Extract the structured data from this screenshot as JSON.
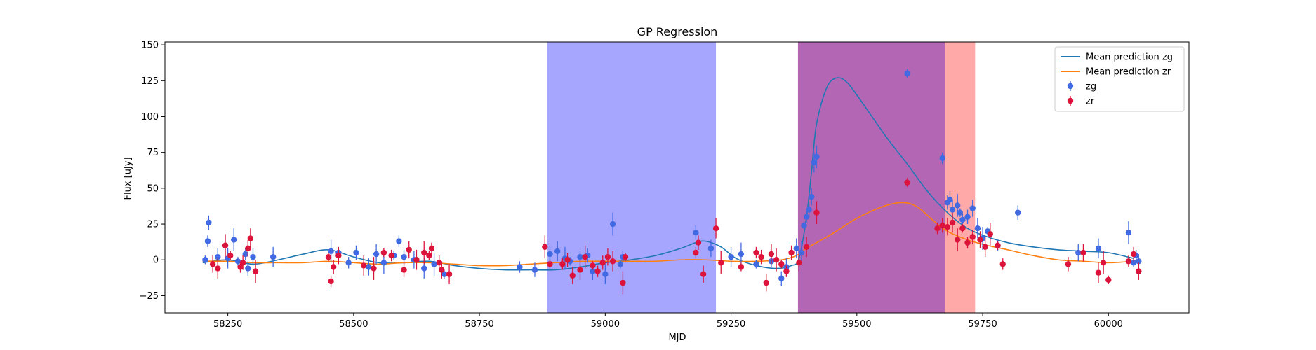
{
  "chart_data": {
    "type": "scatter",
    "title": "GP Regression",
    "xlabel": "MJD",
    "ylabel": "Flux [uJy]",
    "xlim": [
      58125,
      60160
    ],
    "ylim": [
      -37,
      152
    ],
    "xticks": [
      58250,
      58500,
      58750,
      59000,
      59250,
      59500,
      59750,
      60000
    ],
    "yticks": [
      -25,
      0,
      25,
      50,
      75,
      100,
      125,
      150
    ],
    "grid": false,
    "legend_position": "top-right",
    "colors": {
      "zg_line": "#1f77b4",
      "zr_line": "#ff7f0e",
      "zg_points": "#4169e1",
      "zr_points": "#dc143c"
    },
    "shaded_regions": [
      {
        "x0": 58885,
        "x1": 59220,
        "color": "#0000ff",
        "opacity": 0.35
      },
      {
        "x0": 59383,
        "x1": 59675,
        "color": "#800080",
        "opacity": 0.6
      },
      {
        "x0": 59675,
        "x1": 59735,
        "color": "#ff4040",
        "opacity": 0.45
      }
    ],
    "legend": [
      {
        "label": "Mean prediction zg",
        "kind": "line",
        "color": "#1f77b4"
      },
      {
        "label": "Mean prediction zr",
        "kind": "line",
        "color": "#ff7f0e"
      },
      {
        "label": "zg",
        "kind": "errorpoint",
        "color": "#4169e1"
      },
      {
        "label": "zr",
        "kind": "errorpoint",
        "color": "#dc143c"
      }
    ],
    "series": [
      {
        "name": "Mean prediction zg",
        "kind": "line",
        "x": [
          58200,
          58250,
          58300,
          58350,
          58400,
          58450,
          58500,
          58550,
          58600,
          58650,
          58700,
          58750,
          58800,
          58850,
          58900,
          58950,
          59000,
          59050,
          59100,
          59150,
          59180,
          59200,
          59230,
          59260,
          59300,
          59340,
          59370,
          59385,
          59400,
          59410,
          59420,
          59440,
          59460,
          59480,
          59500,
          59530,
          59560,
          59600,
          59640,
          59680,
          59720,
          59760,
          59800,
          59850,
          59900,
          59950,
          60000,
          60050
        ],
        "y": [
          -2,
          0,
          -3,
          0,
          4,
          7,
          2,
          -2,
          -2,
          -1,
          -4,
          -6,
          -7,
          -7,
          -7,
          -5,
          -2,
          0,
          3,
          8,
          12,
          13,
          9,
          1,
          -4,
          -6,
          -4,
          1,
          30,
          62,
          95,
          120,
          127,
          124,
          115,
          100,
          85,
          67,
          48,
          33,
          22,
          16,
          12,
          9,
          7,
          6,
          5,
          1
        ]
      },
      {
        "name": "Mean prediction zr",
        "kind": "line",
        "x": [
          58200,
          58250,
          58300,
          58350,
          58400,
          58450,
          58500,
          58550,
          58600,
          58650,
          58700,
          58750,
          58800,
          58850,
          58900,
          58950,
          59000,
          59050,
          59100,
          59150,
          59200,
          59250,
          59300,
          59350,
          59380,
          59400,
          59450,
          59500,
          59550,
          59590,
          59620,
          59650,
          59680,
          59720,
          59760,
          59800,
          59850,
          59900,
          59950,
          60000,
          60050
        ],
        "y": [
          -1,
          -1,
          -2,
          -2,
          -2,
          -1,
          -2,
          -3,
          -2,
          -2,
          -3,
          -4,
          -4,
          -3,
          -2,
          -1,
          -1,
          -1,
          -1,
          0,
          0,
          -1,
          -1,
          0,
          3,
          8,
          18,
          29,
          37,
          40,
          37,
          28,
          20,
          14,
          10,
          7,
          3,
          0,
          -1,
          -2,
          -1
        ]
      },
      {
        "name": "zg",
        "kind": "errorpoint",
        "x": [
          58205,
          58210,
          58212,
          58230,
          58250,
          58262,
          58270,
          58285,
          58290,
          58300,
          58340,
          58455,
          58470,
          58490,
          58505,
          58530,
          58545,
          58560,
          58580,
          58590,
          58600,
          58620,
          58640,
          58660,
          58680,
          58830,
          58860,
          58890,
          58905,
          58920,
          58930,
          58950,
          58965,
          58975,
          59000,
          59015,
          59030,
          59035,
          59180,
          59210,
          59250,
          59270,
          59300,
          59330,
          59350,
          59360,
          59380,
          59390,
          59395,
          59400,
          59405,
          59410,
          59415,
          59420,
          59600,
          59670,
          59680,
          59685,
          59690,
          59700,
          59705,
          59710,
          59720,
          59730,
          59740,
          59750,
          59760,
          59780,
          59820,
          59940,
          59980,
          60040,
          60050,
          60055,
          60060
        ],
        "y": [
          0,
          13,
          26,
          2,
          1,
          14,
          -1,
          4,
          -6,
          2,
          2,
          6,
          5,
          -2,
          5,
          -5,
          4,
          -2,
          3,
          13,
          2,
          0,
          -6,
          -3,
          -10,
          -5,
          -7,
          4,
          6,
          1,
          -1,
          2,
          3,
          -8,
          -10,
          25,
          -3,
          2,
          19,
          8,
          2,
          4,
          -3,
          -1,
          -13,
          -5,
          8,
          5,
          24,
          30,
          35,
          44,
          68,
          72,
          130,
          71,
          40,
          42,
          35,
          38,
          33,
          28,
          30,
          36,
          22,
          15,
          20,
          10,
          33,
          5,
          8,
          19,
          -2,
          3,
          -1
        ]
      },
      {
        "name": "zr",
        "kind": "errorpoint",
        "x": [
          58220,
          58230,
          58245,
          58255,
          58275,
          58280,
          58290,
          58295,
          58305,
          58450,
          58455,
          58460,
          58470,
          58520,
          58540,
          58560,
          58575,
          58600,
          58610,
          58625,
          58640,
          58650,
          58655,
          58670,
          58675,
          58690,
          58880,
          58890,
          58915,
          58925,
          58935,
          58950,
          58960,
          58975,
          58985,
          58995,
          59005,
          59015,
          59035,
          59040,
          59180,
          59185,
          59195,
          59220,
          59230,
          59270,
          59300,
          59310,
          59320,
          59330,
          59340,
          59350,
          59360,
          59370,
          59385,
          59400,
          59420,
          59600,
          59660,
          59670,
          59680,
          59690,
          59700,
          59710,
          59720,
          59730,
          59745,
          59755,
          59765,
          59780,
          59790,
          59920,
          59950,
          59980,
          59990,
          60000,
          60040,
          60050,
          60060
        ],
        "y": [
          -3,
          -6,
          10,
          3,
          -5,
          -2,
          8,
          15,
          -8,
          2,
          -15,
          -5,
          3,
          -4,
          -6,
          5,
          3,
          -7,
          7,
          0,
          5,
          3,
          8,
          -2,
          -7,
          -10,
          9,
          -3,
          -3,
          0,
          -11,
          -7,
          2,
          -4,
          -8,
          -2,
          2,
          -1,
          -16,
          2,
          5,
          12,
          -10,
          22,
          -2,
          -5,
          5,
          2,
          -16,
          4,
          0,
          -3,
          -8,
          5,
          -2,
          9,
          33,
          54,
          22,
          24,
          23,
          26,
          14,
          22,
          12,
          16,
          14,
          9,
          18,
          10,
          -3,
          -3,
          5,
          -9,
          -2,
          -14,
          -1,
          4,
          -8
        ]
      }
    ]
  }
}
